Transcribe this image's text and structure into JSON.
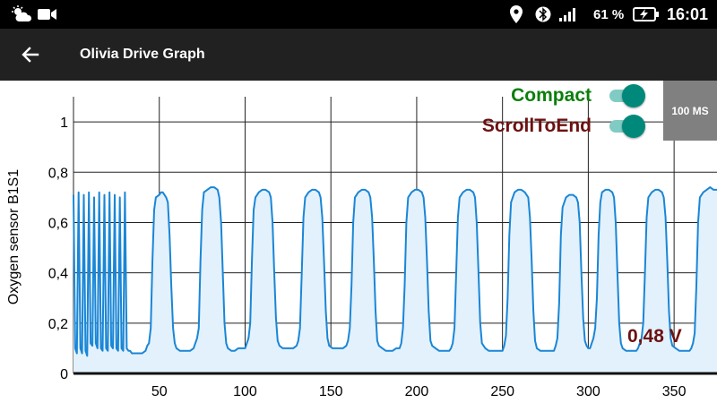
{
  "status_bar": {
    "icons_left": [
      "weather-sun-cloud-icon",
      "video-camera-icon"
    ],
    "icons_right": [
      "location-pin-icon",
      "bluetooth-icon",
      "signal-bars-icon"
    ],
    "battery_percent": "61 %",
    "battery_icon": "battery-charging-icon",
    "time": "16:01"
  },
  "app_bar": {
    "back_icon": "arrow-left-icon",
    "title": "Olivia Drive Graph"
  },
  "controls": {
    "compact": {
      "label": "Compact",
      "checked": true,
      "label_color": "#0a7f0a"
    },
    "scroll_to_end": {
      "label": "ScrollToEnd",
      "checked": true,
      "label_color": "#6d1111"
    },
    "rate_button": "100 MS"
  },
  "readout": {
    "value": "0,48 V",
    "color": "#6d1111"
  },
  "chart_data": {
    "type": "area",
    "title": "",
    "xlabel": "",
    "ylabel": "Oxygen sensor B1S1",
    "xlim": [
      0,
      375
    ],
    "ylim": [
      0,
      1.1
    ],
    "x_ticks": [
      50,
      100,
      150,
      200,
      250,
      300,
      350
    ],
    "x_tick_labels": [
      "50",
      "100",
      "150",
      "200",
      "250",
      "300",
      "350"
    ],
    "y_ticks": [
      0,
      0.2,
      0.4,
      0.6,
      0.8,
      1
    ],
    "y_tick_labels": [
      "0",
      "0,2",
      "0,4",
      "0,6",
      "0,8",
      "1"
    ],
    "grid": true,
    "line_color": "#1a86d6",
    "fill_color": "#e3f1fc",
    "series": [
      {
        "points": [
          [
            0,
            0.71
          ],
          [
            1,
            0.1
          ],
          [
            2,
            0.08
          ],
          [
            3,
            0.72
          ],
          [
            4,
            0.1
          ],
          [
            5,
            0.08
          ],
          [
            6,
            0.71
          ],
          [
            7,
            0.09
          ],
          [
            8,
            0.07
          ],
          [
            9,
            0.72
          ],
          [
            10,
            0.12
          ],
          [
            11,
            0.11
          ],
          [
            12,
            0.7
          ],
          [
            13,
            0.12
          ],
          [
            14,
            0.1
          ],
          [
            15,
            0.72
          ],
          [
            16,
            0.1
          ],
          [
            17,
            0.09
          ],
          [
            18,
            0.71
          ],
          [
            19,
            0.1
          ],
          [
            20,
            0.09
          ],
          [
            21,
            0.72
          ],
          [
            22,
            0.11
          ],
          [
            23,
            0.1
          ],
          [
            24,
            0.71
          ],
          [
            25,
            0.1
          ],
          [
            26,
            0.09
          ],
          [
            27,
            0.7
          ],
          [
            28,
            0.1
          ],
          [
            29,
            0.09
          ],
          [
            30,
            0.72
          ],
          [
            31,
            0.1
          ],
          [
            32,
            0.09
          ],
          [
            33,
            0.09
          ],
          [
            34,
            0.08
          ],
          [
            35,
            0.08
          ],
          [
            36,
            0.08
          ],
          [
            38,
            0.08
          ],
          [
            40,
            0.08
          ],
          [
            42,
            0.09
          ],
          [
            43,
            0.11
          ],
          [
            44,
            0.12
          ],
          [
            45,
            0.18
          ],
          [
            46,
            0.45
          ],
          [
            47,
            0.65
          ],
          [
            48,
            0.7
          ],
          [
            50,
            0.71
          ],
          [
            51,
            0.72
          ],
          [
            52,
            0.72
          ],
          [
            53,
            0.71
          ],
          [
            54,
            0.7
          ],
          [
            55,
            0.68
          ],
          [
            56,
            0.55
          ],
          [
            57,
            0.35
          ],
          [
            58,
            0.18
          ],
          [
            59,
            0.12
          ],
          [
            60,
            0.1
          ],
          [
            62,
            0.09
          ],
          [
            64,
            0.09
          ],
          [
            66,
            0.09
          ],
          [
            68,
            0.09
          ],
          [
            70,
            0.1
          ],
          [
            71,
            0.12
          ],
          [
            72,
            0.14
          ],
          [
            73,
            0.18
          ],
          [
            74,
            0.45
          ],
          [
            75,
            0.65
          ],
          [
            76,
            0.72
          ],
          [
            78,
            0.73
          ],
          [
            80,
            0.74
          ],
          [
            82,
            0.74
          ],
          [
            84,
            0.73
          ],
          [
            85,
            0.7
          ],
          [
            86,
            0.6
          ],
          [
            87,
            0.4
          ],
          [
            88,
            0.2
          ],
          [
            89,
            0.12
          ],
          [
            90,
            0.1
          ],
          [
            92,
            0.09
          ],
          [
            94,
            0.09
          ],
          [
            96,
            0.1
          ],
          [
            98,
            0.1
          ],
          [
            100,
            0.1
          ],
          [
            101,
            0.12
          ],
          [
            102,
            0.14
          ],
          [
            103,
            0.2
          ],
          [
            104,
            0.45
          ],
          [
            105,
            0.65
          ],
          [
            106,
            0.7
          ],
          [
            108,
            0.72
          ],
          [
            110,
            0.73
          ],
          [
            112,
            0.73
          ],
          [
            114,
            0.72
          ],
          [
            115,
            0.7
          ],
          [
            116,
            0.6
          ],
          [
            117,
            0.4
          ],
          [
            118,
            0.22
          ],
          [
            119,
            0.13
          ],
          [
            120,
            0.11
          ],
          [
            122,
            0.1
          ],
          [
            124,
            0.1
          ],
          [
            126,
            0.1
          ],
          [
            128,
            0.1
          ],
          [
            130,
            0.11
          ],
          [
            131,
            0.13
          ],
          [
            132,
            0.18
          ],
          [
            133,
            0.4
          ],
          [
            134,
            0.62
          ],
          [
            135,
            0.7
          ],
          [
            137,
            0.72
          ],
          [
            139,
            0.73
          ],
          [
            141,
            0.73
          ],
          [
            143,
            0.72
          ],
          [
            144,
            0.7
          ],
          [
            145,
            0.62
          ],
          [
            146,
            0.45
          ],
          [
            147,
            0.25
          ],
          [
            148,
            0.14
          ],
          [
            149,
            0.11
          ],
          [
            151,
            0.1
          ],
          [
            153,
            0.1
          ],
          [
            155,
            0.1
          ],
          [
            157,
            0.1
          ],
          [
            159,
            0.11
          ],
          [
            160,
            0.13
          ],
          [
            161,
            0.18
          ],
          [
            162,
            0.35
          ],
          [
            163,
            0.6
          ],
          [
            164,
            0.7
          ],
          [
            166,
            0.72
          ],
          [
            168,
            0.73
          ],
          [
            170,
            0.73
          ],
          [
            172,
            0.72
          ],
          [
            173,
            0.7
          ],
          [
            174,
            0.62
          ],
          [
            175,
            0.45
          ],
          [
            176,
            0.25
          ],
          [
            177,
            0.13
          ],
          [
            178,
            0.11
          ],
          [
            180,
            0.1
          ],
          [
            182,
            0.09
          ],
          [
            184,
            0.09
          ],
          [
            186,
            0.09
          ],
          [
            188,
            0.1
          ],
          [
            190,
            0.1
          ],
          [
            191,
            0.12
          ],
          [
            192,
            0.18
          ],
          [
            193,
            0.35
          ],
          [
            194,
            0.6
          ],
          [
            195,
            0.7
          ],
          [
            197,
            0.72
          ],
          [
            199,
            0.73
          ],
          [
            201,
            0.73
          ],
          [
            203,
            0.72
          ],
          [
            204,
            0.7
          ],
          [
            205,
            0.62
          ],
          [
            206,
            0.45
          ],
          [
            207,
            0.25
          ],
          [
            208,
            0.13
          ],
          [
            209,
            0.11
          ],
          [
            211,
            0.1
          ],
          [
            213,
            0.09
          ],
          [
            215,
            0.09
          ],
          [
            217,
            0.09
          ],
          [
            219,
            0.09
          ],
          [
            220,
            0.1
          ],
          [
            221,
            0.12
          ],
          [
            222,
            0.18
          ],
          [
            223,
            0.4
          ],
          [
            224,
            0.62
          ],
          [
            225,
            0.7
          ],
          [
            227,
            0.72
          ],
          [
            229,
            0.73
          ],
          [
            231,
            0.73
          ],
          [
            233,
            0.72
          ],
          [
            234,
            0.7
          ],
          [
            235,
            0.6
          ],
          [
            236,
            0.4
          ],
          [
            237,
            0.2
          ],
          [
            238,
            0.12
          ],
          [
            240,
            0.1
          ],
          [
            242,
            0.09
          ],
          [
            244,
            0.09
          ],
          [
            246,
            0.09
          ],
          [
            248,
            0.09
          ],
          [
            250,
            0.09
          ],
          [
            251,
            0.11
          ],
          [
            252,
            0.15
          ],
          [
            253,
            0.3
          ],
          [
            254,
            0.55
          ],
          [
            255,
            0.68
          ],
          [
            257,
            0.72
          ],
          [
            259,
            0.73
          ],
          [
            261,
            0.73
          ],
          [
            263,
            0.72
          ],
          [
            265,
            0.7
          ],
          [
            266,
            0.62
          ],
          [
            267,
            0.45
          ],
          [
            268,
            0.25
          ],
          [
            269,
            0.13
          ],
          [
            270,
            0.1
          ],
          [
            272,
            0.09
          ],
          [
            274,
            0.09
          ],
          [
            276,
            0.09
          ],
          [
            278,
            0.09
          ],
          [
            280,
            0.09
          ],
          [
            281,
            0.11
          ],
          [
            282,
            0.14
          ],
          [
            283,
            0.28
          ],
          [
            284,
            0.55
          ],
          [
            285,
            0.66
          ],
          [
            287,
            0.7
          ],
          [
            289,
            0.71
          ],
          [
            291,
            0.71
          ],
          [
            293,
            0.7
          ],
          [
            294,
            0.68
          ],
          [
            295,
            0.6
          ],
          [
            296,
            0.4
          ],
          [
            297,
            0.22
          ],
          [
            298,
            0.13
          ],
          [
            299,
            0.11
          ],
          [
            300,
            0.1
          ],
          [
            301,
            0.1
          ],
          [
            302,
            0.12
          ],
          [
            303,
            0.14
          ],
          [
            304,
            0.18
          ],
          [
            305,
            0.3
          ],
          [
            306,
            0.55
          ],
          [
            307,
            0.68
          ],
          [
            308,
            0.72
          ],
          [
            310,
            0.73
          ],
          [
            312,
            0.73
          ],
          [
            314,
            0.72
          ],
          [
            315,
            0.7
          ],
          [
            316,
            0.6
          ],
          [
            317,
            0.4
          ],
          [
            318,
            0.2
          ],
          [
            319,
            0.12
          ],
          [
            320,
            0.1
          ],
          [
            322,
            0.09
          ],
          [
            324,
            0.09
          ],
          [
            326,
            0.09
          ],
          [
            328,
            0.09
          ],
          [
            329,
            0.1
          ],
          [
            330,
            0.12
          ],
          [
            331,
            0.14
          ],
          [
            332,
            0.2
          ],
          [
            333,
            0.4
          ],
          [
            334,
            0.62
          ],
          [
            335,
            0.7
          ],
          [
            337,
            0.72
          ],
          [
            339,
            0.73
          ],
          [
            341,
            0.73
          ],
          [
            343,
            0.72
          ],
          [
            344,
            0.7
          ],
          [
            345,
            0.62
          ],
          [
            346,
            0.45
          ],
          [
            347,
            0.25
          ],
          [
            348,
            0.14
          ],
          [
            349,
            0.11
          ],
          [
            351,
            0.1
          ],
          [
            353,
            0.09
          ],
          [
            355,
            0.09
          ],
          [
            357,
            0.09
          ],
          [
            359,
            0.09
          ],
          [
            360,
            0.1
          ],
          [
            361,
            0.12
          ],
          [
            362,
            0.16
          ],
          [
            363,
            0.35
          ],
          [
            364,
            0.6
          ],
          [
            365,
            0.7
          ],
          [
            367,
            0.72
          ],
          [
            369,
            0.73
          ],
          [
            371,
            0.74
          ],
          [
            373,
            0.73
          ],
          [
            375,
            0.73
          ]
        ]
      }
    ]
  }
}
